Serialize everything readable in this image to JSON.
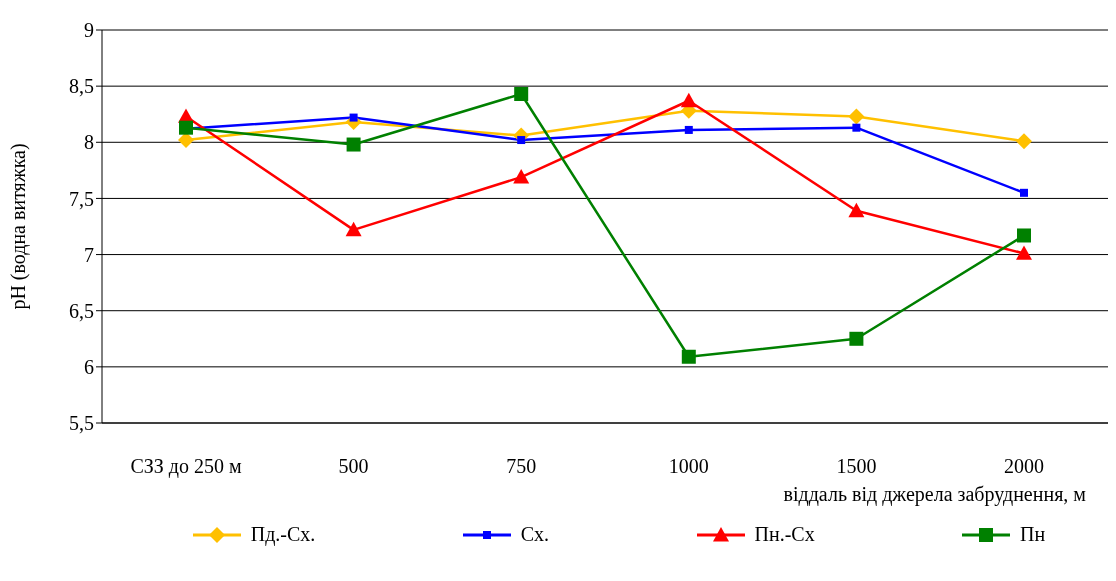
{
  "chart_data": {
    "type": "line",
    "ylabel": "pH (водна витяжка)",
    "xlabel": "віддаль від джерела забруднення, м",
    "categories": [
      "СЗЗ до 250 м",
      "500",
      "750",
      "1000",
      "1500",
      "2000"
    ],
    "series": [
      {
        "name": "Пд.-Сх.",
        "color": "#ffc000",
        "marker": "diamond",
        "values": [
          8.02,
          8.18,
          8.06,
          8.28,
          8.23,
          8.01
        ]
      },
      {
        "name": "Сх.",
        "color": "#0000ff",
        "marker": "square",
        "values": [
          8.12,
          8.22,
          8.02,
          8.11,
          8.13,
          7.55
        ]
      },
      {
        "name": "Пн.-Сх",
        "color": "#ff0000",
        "marker": "triangle",
        "values": [
          8.23,
          7.22,
          7.69,
          8.37,
          7.39,
          7.01
        ]
      },
      {
        "name": "Пн",
        "color": "#008000",
        "marker": "square",
        "values": [
          8.13,
          7.98,
          8.43,
          6.09,
          6.25,
          7.17
        ]
      }
    ],
    "ylim": [
      5.5,
      9
    ],
    "yticks": [
      {
        "value": 5.5,
        "label": "5,5"
      },
      6,
      {
        "value": 6.5,
        "label": "6,5"
      },
      7,
      {
        "value": 7.5,
        "label": "7,5"
      },
      8,
      {
        "value": 8.5,
        "label": "8,5"
      },
      9
    ],
    "grid": "y",
    "legend": "bottom",
    "line_style": "solid"
  }
}
